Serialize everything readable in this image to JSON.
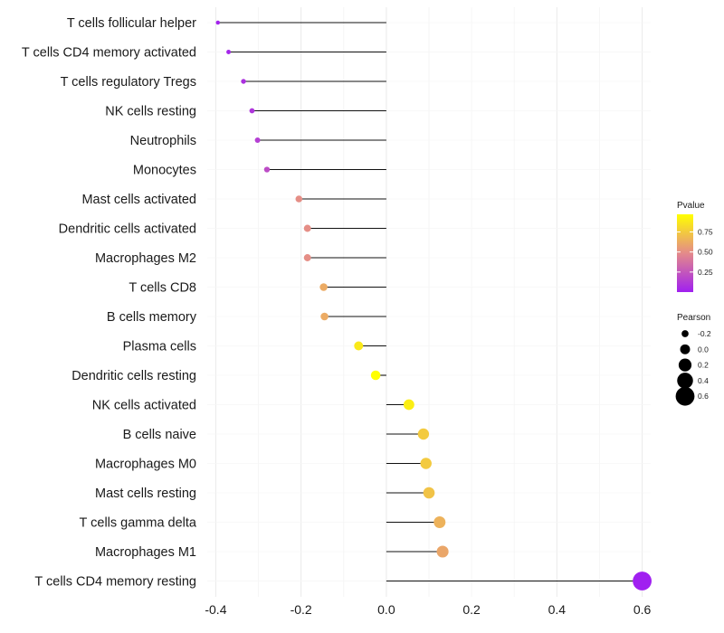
{
  "chart_data": {
    "type": "lollipop",
    "categories": [
      "T cells follicular helper",
      "T cells CD4 memory activated",
      "T cells regulatory  Tregs",
      "NK cells resting",
      "Neutrophils",
      "Monocytes",
      "Mast cells activated",
      "Dendritic cells activated",
      "Macrophages M2",
      "T cells CD8",
      "B cells memory",
      "Plasma cells",
      "Dendritic cells resting",
      "NK cells activated",
      "B cells naive",
      "Macrophages M0",
      "Mast cells resting",
      "T cells gamma delta",
      "Macrophages M1",
      "T cells CD4 memory resting"
    ],
    "pearson": [
      -0.395,
      -0.37,
      -0.335,
      -0.315,
      -0.302,
      -0.28,
      -0.205,
      -0.185,
      -0.185,
      -0.147,
      -0.145,
      -0.065,
      -0.025,
      0.053,
      0.087,
      0.093,
      0.1,
      0.125,
      0.132,
      0.6
    ],
    "pvalue": [
      0.02,
      0.03,
      0.08,
      0.1,
      0.14,
      0.2,
      0.5,
      0.5,
      0.5,
      0.62,
      0.62,
      0.88,
      0.97,
      0.9,
      0.75,
      0.75,
      0.72,
      0.65,
      0.6,
      0.0
    ],
    "x_ticks": [
      "-0.4",
      "-0.2",
      "0.0",
      "0.2",
      "0.4",
      "0.6"
    ],
    "x_tick_values": [
      -0.4,
      -0.2,
      0.0,
      0.2,
      0.4,
      0.6
    ],
    "xlim": [
      -0.42,
      0.62
    ],
    "grid": true,
    "legend": {
      "color_title": "Pvalue",
      "color_ticks": [
        "0.75",
        "0.50",
        "0.25"
      ],
      "color_tick_values": [
        0.75,
        0.5,
        0.25
      ],
      "color_range": [
        0.0,
        0.97
      ],
      "color_low": "#a020f0",
      "color_mid": "#e48a8a",
      "color_high": "#ffff00",
      "size_title": "Pearson",
      "size_labels": [
        "-0.2",
        "0.0",
        "0.2",
        "0.4",
        "0.6"
      ],
      "size_values": [
        -0.2,
        0.0,
        0.2,
        0.4,
        0.6
      ],
      "placement": "right"
    }
  }
}
